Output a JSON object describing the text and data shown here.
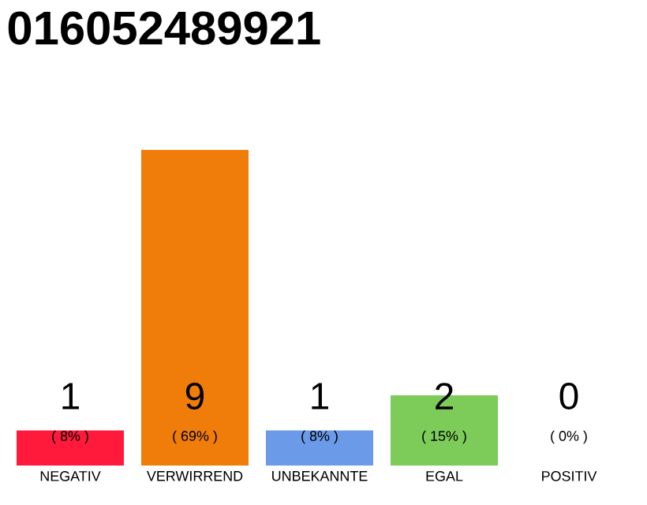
{
  "chart_data": {
    "type": "bar",
    "title": "016052489921",
    "categories": [
      "NEGATIV",
      "VERWIRREND",
      "UNBEKANNTE",
      "EGAL",
      "POSITIV"
    ],
    "values": [
      1,
      9,
      1,
      2,
      0
    ],
    "colors": [
      "#ff1a3c",
      "#f07d0a",
      "#6a9ae8",
      "#7dcc5a",
      "#aaaaaa"
    ],
    "value_labels": [
      "1",
      "9",
      "1",
      "2",
      "0"
    ],
    "annotations": [
      "( 8% )",
      "( 69% )",
      "( 8% )",
      "( 15% )",
      "( 0% )"
    ],
    "tick_labels": "x"
  }
}
